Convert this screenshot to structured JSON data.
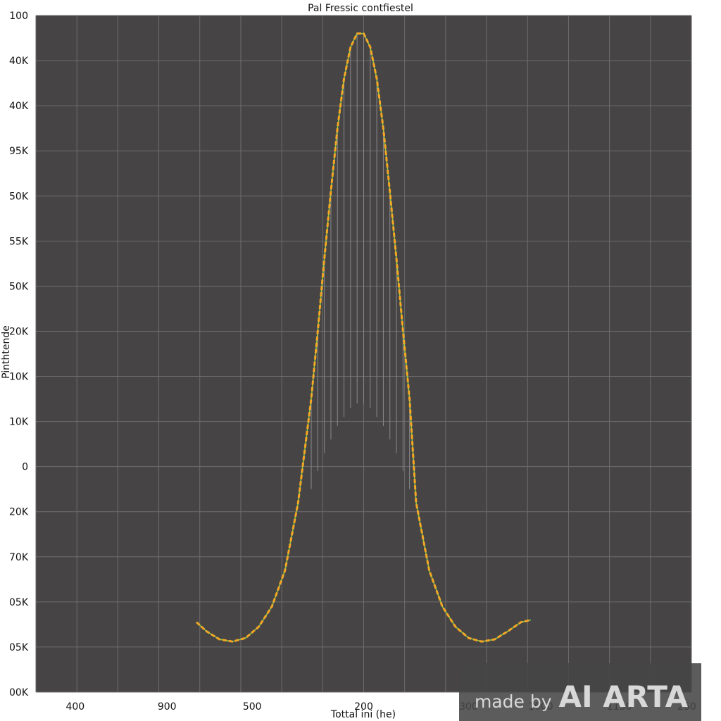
{
  "chart_data": {
    "type": "line",
    "title": "Pal Fressic contfiestel",
    "xlabel": "Tottal ini (he)",
    "ylabel": "Pinthtende",
    "y_tick_labels": [
      "100",
      "40K",
      "40K",
      "95K",
      "50K",
      "55K",
      "50K",
      "20K",
      "10K",
      "10K",
      "0",
      "20K",
      "70K",
      "05K",
      "05K",
      "00K"
    ],
    "x_tick_labels": [
      {
        "text": "400",
        "pos": 0.06
      },
      {
        "text": "900",
        "pos": 0.2
      },
      {
        "text": "500",
        "pos": 0.33
      },
      {
        "text": "200",
        "pos": 0.5
      },
      {
        "text": "300",
        "pos": 0.66
      },
      {
        "text": "1000",
        "pos": 0.77
      },
      {
        "text": "1150",
        "pos": 0.89
      },
      {
        "text": "250",
        "pos": 0.993
      }
    ],
    "grid": true,
    "xlim": [
      0,
      1
    ],
    "ylim": [
      0,
      15
    ],
    "series": [
      {
        "color": "#f5a623",
        "x": [
          0.245,
          0.26,
          0.28,
          0.3,
          0.32,
          0.34,
          0.36,
          0.38,
          0.4,
          0.42,
          0.43,
          0.44,
          0.45,
          0.46,
          0.47,
          0.48,
          0.49,
          0.5,
          0.51,
          0.52,
          0.53,
          0.54,
          0.55,
          0.56,
          0.57,
          0.58,
          0.6,
          0.62,
          0.64,
          0.66,
          0.68,
          0.7,
          0.72,
          0.74,
          0.755
        ],
        "y": [
          1.55,
          1.35,
          1.17,
          1.12,
          1.2,
          1.45,
          1.9,
          2.7,
          4.2,
          6.5,
          8.0,
          9.6,
          11.1,
          12.5,
          13.6,
          14.3,
          14.6,
          14.6,
          14.3,
          13.6,
          12.5,
          11.1,
          9.6,
          8.0,
          6.5,
          4.2,
          2.7,
          1.9,
          1.45,
          1.2,
          1.12,
          1.17,
          1.35,
          1.55,
          1.6
        ]
      }
    ],
    "fill_lines": {
      "color": "#8a8a8a",
      "x": [
        0.42,
        0.43,
        0.44,
        0.45,
        0.46,
        0.47,
        0.48,
        0.49,
        0.5,
        0.51,
        0.52,
        0.53,
        0.54,
        0.55,
        0.56,
        0.57,
        0.58
      ],
      "y_top": [
        6.5,
        8.0,
        9.6,
        11.1,
        12.5,
        13.6,
        14.3,
        14.6,
        14.6,
        14.3,
        13.6,
        12.5,
        11.1,
        9.6,
        8.0,
        6.5,
        4.2
      ],
      "y_bottom": [
        4.5,
        4.9,
        5.3,
        5.6,
        5.9,
        6.1,
        6.3,
        6.4,
        6.4,
        6.3,
        6.1,
        5.9,
        5.6,
        5.3,
        4.9,
        4.5,
        4.3
      ]
    },
    "colors": {
      "plot_bg": "#464445",
      "grid": "#6e6d6e",
      "accent_green": "#8fd14f"
    }
  },
  "watermark": {
    "prefix": "made by",
    "brand": "AI ARTA"
  }
}
